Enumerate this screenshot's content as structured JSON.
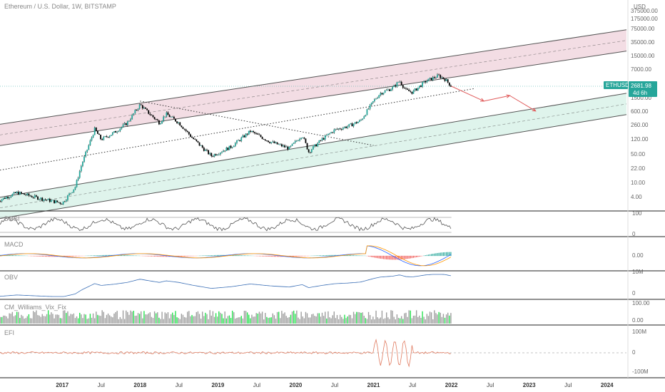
{
  "header": {
    "title": "Ethereum / U.S. Dollar, 1W, BITSTAMP"
  },
  "colors": {
    "candle_up": "#26a69a",
    "candle_down": "#000000",
    "upper_channel_fill": "#f3dde4",
    "lower_channel_fill": "#dff4ec",
    "projection": "#e05a5a",
    "tag_bg": "#26a69a",
    "rsi": "#555555",
    "macd": "#2962ff",
    "signal": "#ff9800",
    "obv": "#3b6fb6",
    "vixfix_hi": "#27e14f",
    "vixfix_lo": "#9e9e9e",
    "efi": "#e07a5f"
  },
  "price_tag": {
    "symbol": "ETHUSD",
    "price": "2681.98",
    "countdown": "4d 6h"
  },
  "chart_data": {
    "type": "candlestick",
    "scale": "log",
    "price_axis": {
      "unit": "USD",
      "ticks": [
        "375000.00",
        "175000.00",
        "75000.00",
        "35000.00",
        "15000.00",
        "7000.00",
        "1500.00",
        "600.00",
        "260.00",
        "120.00",
        "50.00",
        "22.00",
        "10.00",
        "4.00"
      ]
    },
    "time_axis": {
      "ticks": [
        {
          "label": "2017",
          "bold": true
        },
        {
          "label": "Jul",
          "bold": false
        },
        {
          "label": "2018",
          "bold": true
        },
        {
          "label": "Jul",
          "bold": false
        },
        {
          "label": "2019",
          "bold": true
        },
        {
          "label": "Jul",
          "bold": false
        },
        {
          "label": "2020",
          "bold": true
        },
        {
          "label": "Jul",
          "bold": false
        },
        {
          "label": "2021",
          "bold": true
        },
        {
          "label": "Jul",
          "bold": false
        },
        {
          "label": "2022",
          "bold": true
        },
        {
          "label": "Jul",
          "bold": false
        },
        {
          "label": "2023",
          "bold": true
        },
        {
          "label": "Jul",
          "bold": false
        },
        {
          "label": "2024",
          "bold": true
        }
      ]
    },
    "price_anchors": [
      [
        "2016-03",
        10
      ],
      [
        "2016-06",
        15
      ],
      [
        "2016-10",
        11
      ],
      [
        "2017-01",
        9
      ],
      [
        "2017-03",
        20
      ],
      [
        "2017-04",
        60
      ],
      [
        "2017-06",
        330
      ],
      [
        "2017-07",
        200
      ],
      [
        "2017-09",
        280
      ],
      [
        "2017-11",
        450
      ],
      [
        "2018-01",
        1100
      ],
      [
        "2018-02",
        800
      ],
      [
        "2018-04",
        450
      ],
      [
        "2018-05",
        700
      ],
      [
        "2018-07",
        450
      ],
      [
        "2018-09",
        220
      ],
      [
        "2018-11",
        120
      ],
      [
        "2018-12",
        90
      ],
      [
        "2019-03",
        140
      ],
      [
        "2019-06",
        300
      ],
      [
        "2019-09",
        180
      ],
      [
        "2019-12",
        130
      ],
      [
        "2020-02",
        250
      ],
      [
        "2020-03",
        110
      ],
      [
        "2020-05",
        200
      ],
      [
        "2020-07",
        320
      ],
      [
        "2020-09",
        380
      ],
      [
        "2020-11",
        500
      ],
      [
        "2021-01",
        1300
      ],
      [
        "2021-02",
        1900
      ],
      [
        "2021-04",
        2500
      ],
      [
        "2021-05",
        3500
      ],
      [
        "2021-06",
        2200
      ],
      [
        "2021-07",
        2000
      ],
      [
        "2021-09",
        3400
      ],
      [
        "2021-11",
        4500
      ],
      [
        "2021-12",
        3800
      ],
      [
        "2022-01",
        2682
      ]
    ],
    "projection_path": [
      [
        "2022-01",
        2682
      ],
      [
        "2022-06",
        1300
      ],
      [
        "2022-10",
        1700
      ],
      [
        "2023-02",
        800
      ]
    ],
    "indicators": [
      {
        "name": "DRSI",
        "axis": [
          "100",
          "0"
        ]
      },
      {
        "name": "MACD",
        "axis": [
          "0.00"
        ]
      },
      {
        "name": "OBV",
        "axis": [
          "10M",
          "0"
        ]
      },
      {
        "name": "CM_Williams_Vix_Fix",
        "axis": [
          "100.00",
          "0.00"
        ]
      },
      {
        "name": "EFI",
        "axis": [
          "100M",
          "0",
          "-100M"
        ]
      }
    ]
  }
}
